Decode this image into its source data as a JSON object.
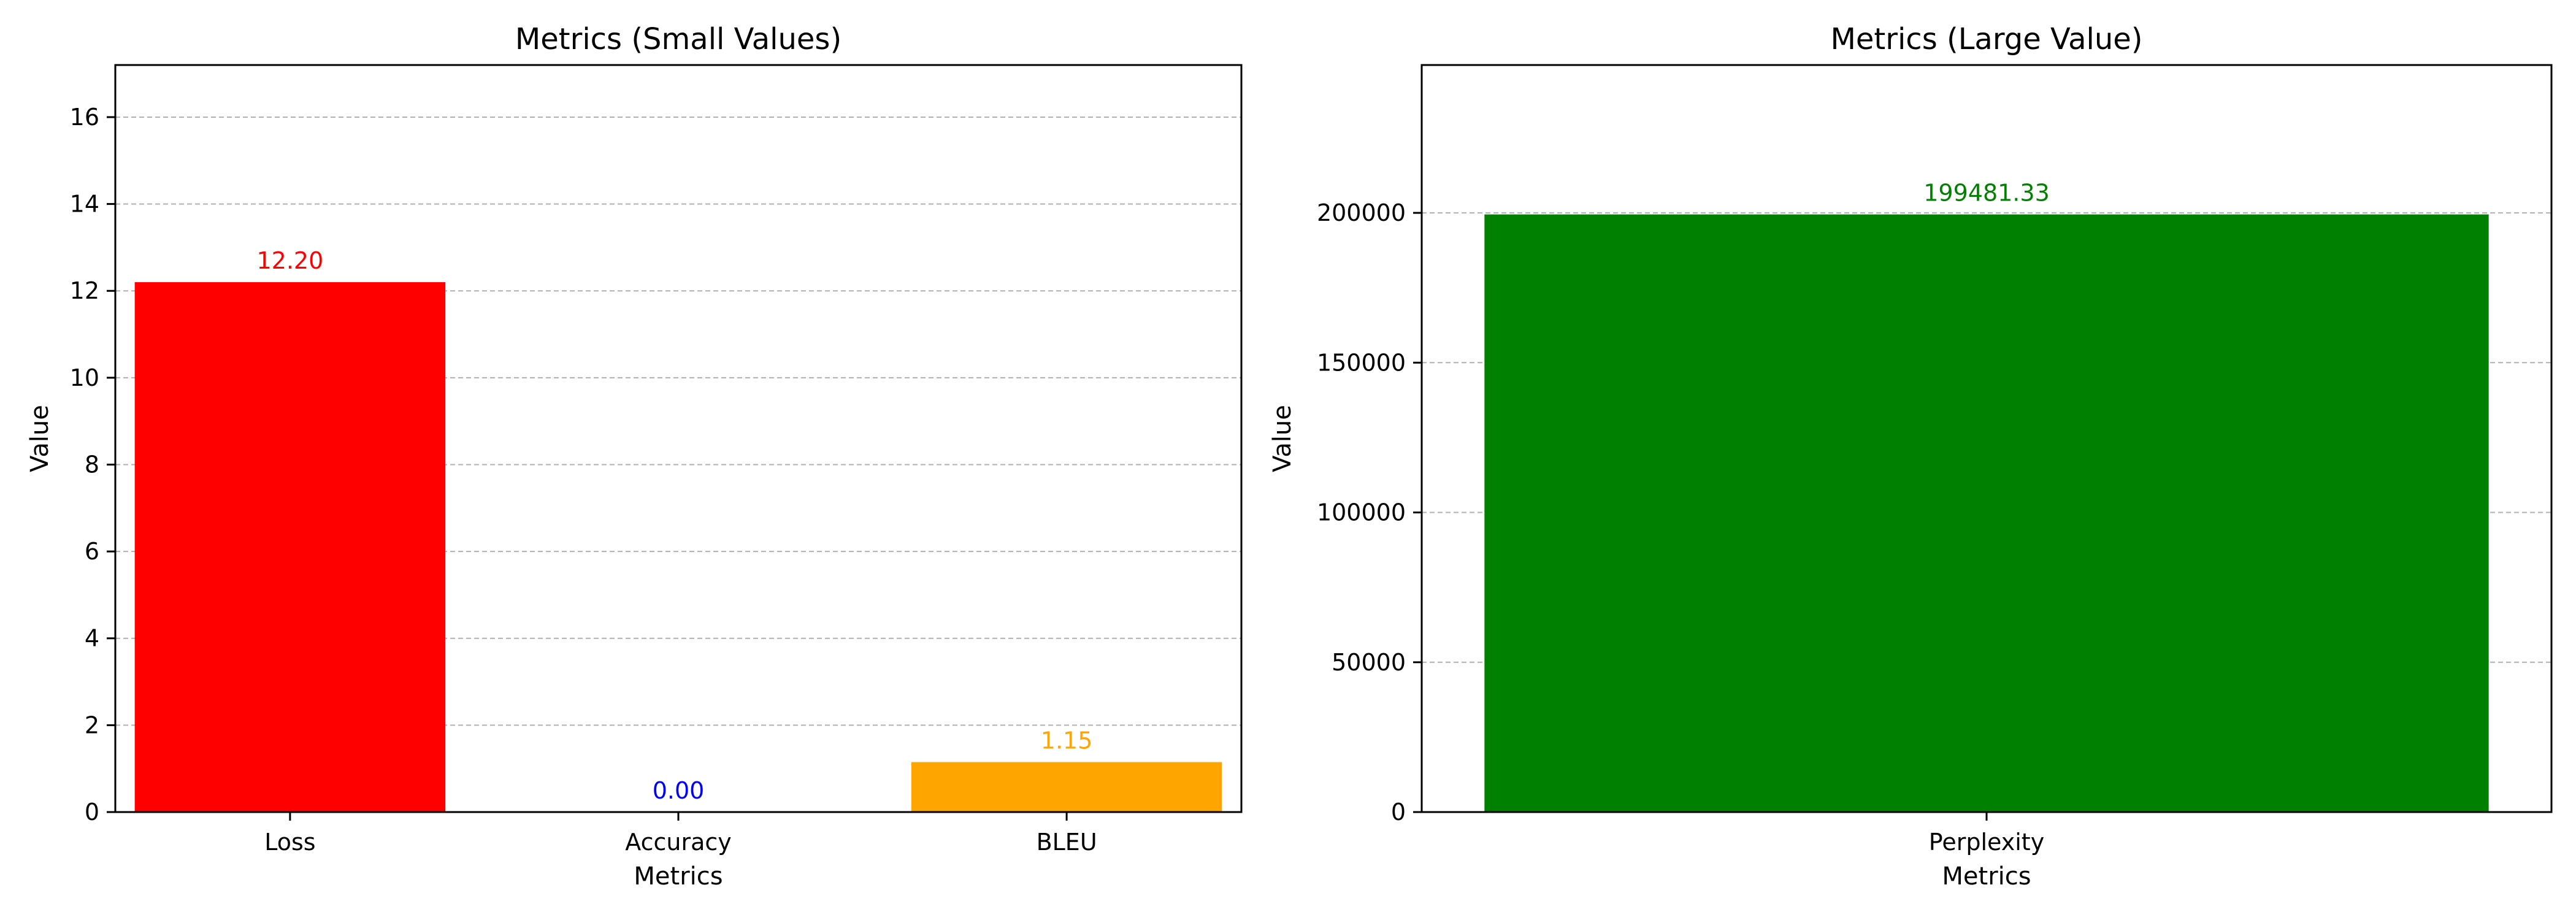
{
  "chart_data": [
    {
      "type": "bar",
      "title": "Metrics (Small Values)",
      "xlabel": "Metrics",
      "ylabel": "Value",
      "categories": [
        "Loss",
        "Accuracy",
        "BLEU"
      ],
      "values": [
        12.2,
        0.0,
        1.15
      ],
      "value_labels": [
        "12.20",
        "0.00",
        "1.15"
      ],
      "colors": [
        "#ff0000",
        "#0000ff",
        "#ffa500"
      ],
      "ylim": [
        0,
        17.2
      ],
      "yticks": [
        0,
        2,
        4,
        6,
        8,
        10,
        12,
        14,
        16
      ],
      "ytick_labels": [
        "0",
        "2",
        "4",
        "6",
        "8",
        "10",
        "12",
        "14",
        "16"
      ],
      "grid": "y-dashed",
      "legend": "none"
    },
    {
      "type": "bar",
      "title": "Metrics (Large Value)",
      "xlabel": "Metrics",
      "ylabel": "Value",
      "categories": [
        "Perplexity"
      ],
      "values": [
        199481.33
      ],
      "value_labels": [
        "199481.33"
      ],
      "colors": [
        "#008000"
      ],
      "ylim": [
        0,
        249351.66
      ],
      "yticks": [
        0,
        50000,
        100000,
        150000,
        200000
      ],
      "ytick_labels": [
        "0",
        "50000",
        "100000",
        "150000",
        "200000"
      ],
      "grid": "y-dashed",
      "legend": "none"
    }
  ]
}
